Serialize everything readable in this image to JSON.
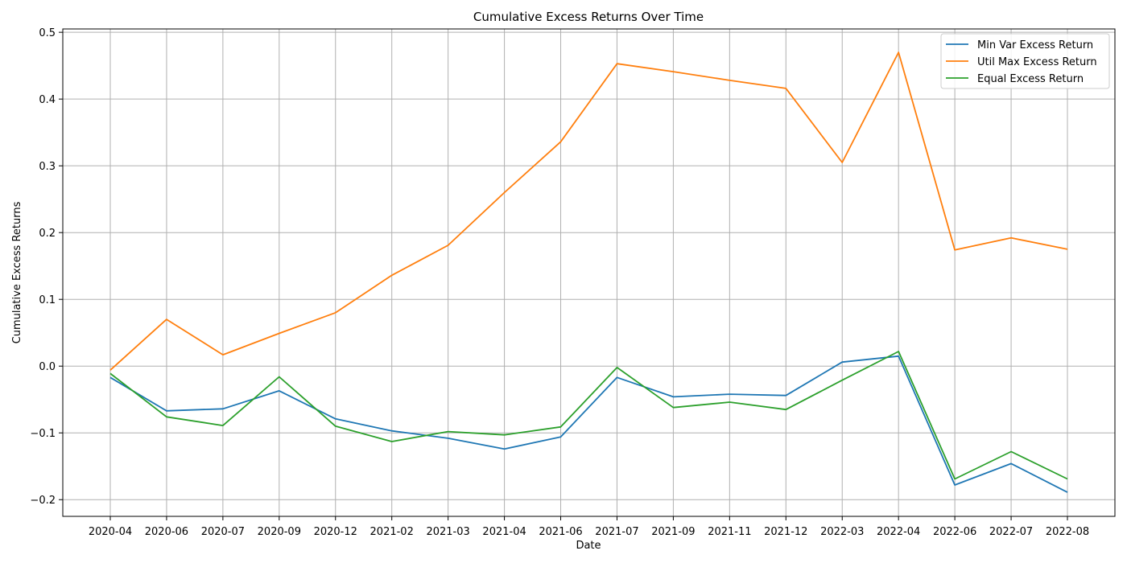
{
  "chart_data": {
    "type": "line",
    "title": "Cumulative Excess Returns Over Time",
    "xlabel": "Date",
    "ylabel": "Cumulative Excess Returns",
    "categories": [
      "2020-04",
      "2020-06",
      "2020-07",
      "2020-09",
      "2020-12",
      "2021-02",
      "2021-03",
      "2021-04",
      "2021-06",
      "2021-07",
      "2021-09",
      "2021-11",
      "2021-12",
      "2022-03",
      "2022-04",
      "2022-06",
      "2022-07",
      "2022-08"
    ],
    "ylim": [
      -0.225,
      0.505
    ],
    "yticks": [
      -0.2,
      -0.1,
      0.0,
      0.1,
      0.2,
      0.3,
      0.4,
      0.5
    ],
    "ytick_labels": [
      "−0.2",
      "−0.1",
      "0.0",
      "0.1",
      "0.2",
      "0.3",
      "0.4",
      "0.5"
    ],
    "grid": true,
    "legend_position": "top-right",
    "series": [
      {
        "name": "Min Var Excess Return",
        "color": "#1f77b4",
        "values": [
          -0.017,
          -0.067,
          -0.064,
          -0.037,
          -0.079,
          -0.097,
          -0.108,
          -0.124,
          -0.106,
          -0.017,
          -0.046,
          -0.042,
          -0.044,
          0.006,
          0.015,
          -0.178,
          -0.146,
          -0.189
        ]
      },
      {
        "name": "Util Max Excess Return",
        "color": "#ff7f0e",
        "values": [
          -0.006,
          0.07,
          0.017,
          0.049,
          0.08,
          0.136,
          0.181,
          0.26,
          0.336,
          0.453,
          0.441,
          0.428,
          0.416,
          0.305,
          0.47,
          0.174,
          0.192,
          0.175
        ]
      },
      {
        "name": "Equal Excess Return",
        "color": "#2ca02c",
        "values": [
          -0.011,
          -0.076,
          -0.089,
          -0.016,
          -0.09,
          -0.113,
          -0.098,
          -0.103,
          -0.091,
          -0.002,
          -0.062,
          -0.054,
          -0.065,
          -0.021,
          0.022,
          -0.169,
          -0.128,
          -0.169
        ]
      }
    ]
  }
}
